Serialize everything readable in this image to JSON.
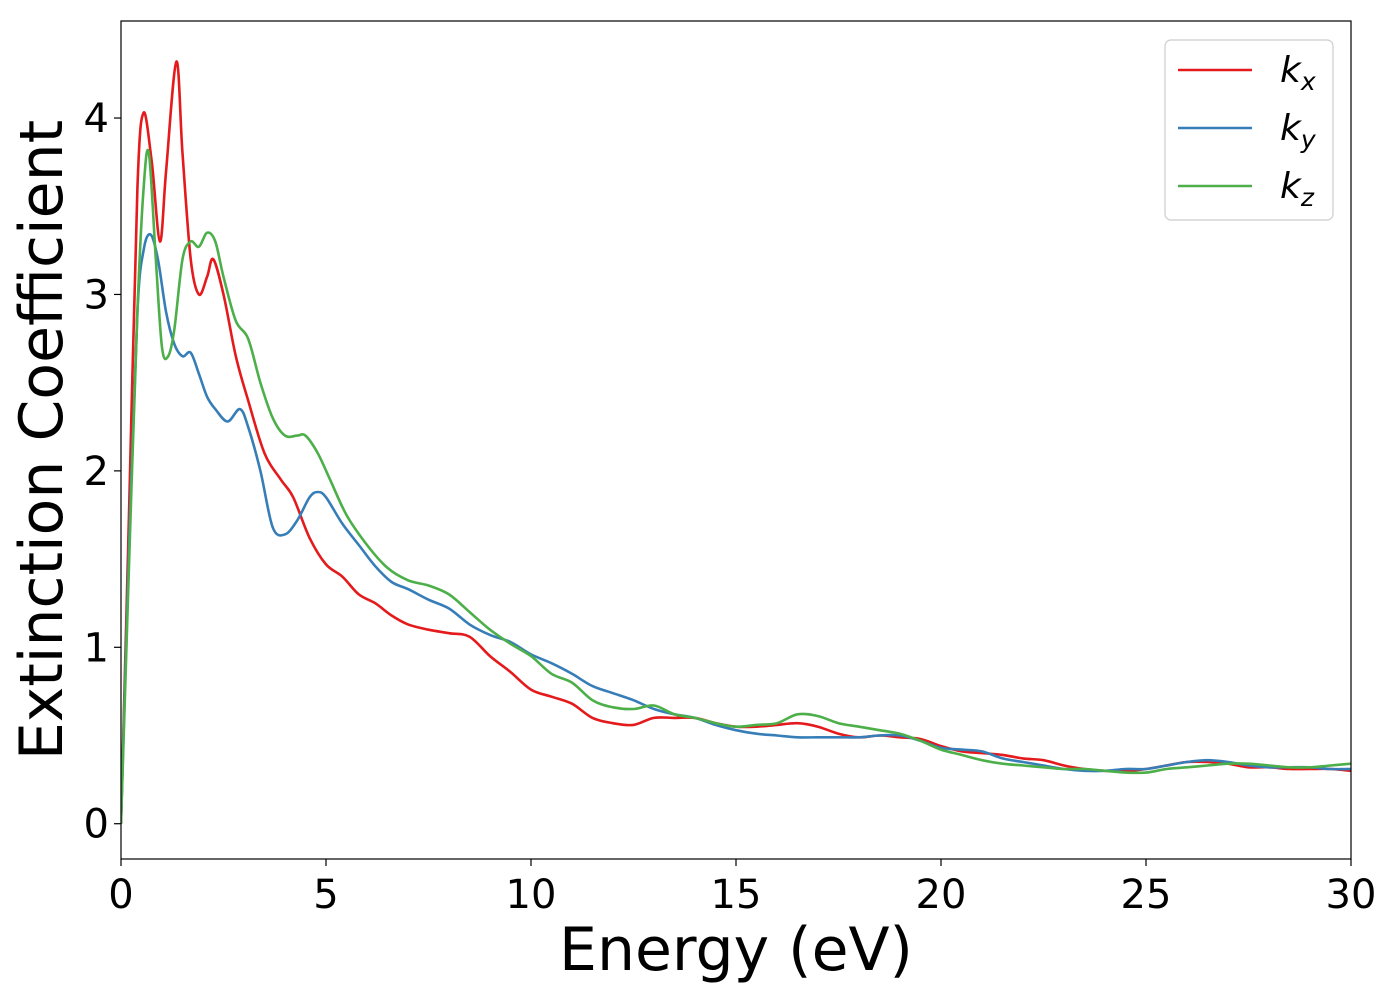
{
  "chart_data": {
    "type": "line",
    "title": "",
    "xlabel": "Energy (eV)",
    "ylabel": "Extinction Coefficient",
    "xlim": [
      0,
      30
    ],
    "ylim": [
      -0.2,
      4.55
    ],
    "xticks": [
      0,
      5,
      10,
      15,
      20,
      25,
      30
    ],
    "yticks": [
      0,
      1,
      2,
      3,
      4
    ],
    "xtick_labels": [
      "0",
      "5",
      "10",
      "15",
      "20",
      "25",
      "30"
    ],
    "ytick_labels": [
      "0",
      "1",
      "2",
      "3",
      "4"
    ],
    "grid": false,
    "legend_position": "top-right",
    "series": [
      {
        "name": "k_x",
        "legend_main": "k",
        "legend_sub": "x",
        "color": "#e41a1c",
        "x": [
          0,
          0.2,
          0.4,
          0.55,
          0.75,
          0.95,
          1.1,
          1.35,
          1.5,
          1.7,
          1.9,
          2.1,
          2.25,
          2.5,
          2.8,
          3.1,
          3.5,
          3.9,
          4.2,
          4.6,
          5.0,
          5.4,
          5.8,
          6.2,
          6.6,
          7.0,
          7.5,
          8.0,
          8.5,
          9.0,
          9.5,
          10.0,
          10.5,
          11.0,
          11.5,
          12.0,
          12.5,
          13.0,
          13.5,
          14.0,
          14.5,
          15.0,
          15.5,
          16.0,
          16.5,
          17.0,
          17.5,
          18.0,
          18.5,
          19.0,
          19.5,
          20.0,
          20.5,
          21.0,
          21.5,
          22.0,
          22.5,
          23.0,
          23.5,
          24.0,
          24.5,
          25.0,
          25.5,
          26.0,
          26.5,
          27.0,
          27.5,
          28.0,
          28.5,
          29.0,
          29.5,
          30.0
        ],
        "y": [
          0.0,
          1.8,
          3.6,
          4.03,
          3.75,
          3.3,
          3.7,
          4.32,
          3.8,
          3.2,
          3.0,
          3.1,
          3.2,
          3.0,
          2.65,
          2.4,
          2.1,
          1.95,
          1.85,
          1.62,
          1.47,
          1.4,
          1.3,
          1.25,
          1.18,
          1.13,
          1.1,
          1.08,
          1.06,
          0.95,
          0.86,
          0.76,
          0.72,
          0.68,
          0.6,
          0.57,
          0.56,
          0.6,
          0.6,
          0.6,
          0.57,
          0.55,
          0.55,
          0.56,
          0.57,
          0.55,
          0.51,
          0.49,
          0.5,
          0.49,
          0.48,
          0.44,
          0.41,
          0.4,
          0.39,
          0.37,
          0.36,
          0.33,
          0.31,
          0.3,
          0.3,
          0.31,
          0.33,
          0.35,
          0.35,
          0.34,
          0.32,
          0.32,
          0.31,
          0.31,
          0.31,
          0.3
        ]
      },
      {
        "name": "k_y",
        "legend_main": "k",
        "legend_sub": "y",
        "color": "#377eb8",
        "x": [
          0,
          0.2,
          0.4,
          0.55,
          0.72,
          0.9,
          1.1,
          1.3,
          1.5,
          1.7,
          1.9,
          2.1,
          2.3,
          2.6,
          2.9,
          3.1,
          3.4,
          3.7,
          4.0,
          4.3,
          4.6,
          4.8,
          5.0,
          5.4,
          5.8,
          6.2,
          6.6,
          7.0,
          7.5,
          8.0,
          8.5,
          9.0,
          9.5,
          10.0,
          10.5,
          11.0,
          11.5,
          12.0,
          12.5,
          13.0,
          13.5,
          14.0,
          14.5,
          15.0,
          15.5,
          16.0,
          16.5,
          17.0,
          17.5,
          18.0,
          18.5,
          19.0,
          19.5,
          20.0,
          20.5,
          21.0,
          21.5,
          22.0,
          22.5,
          23.0,
          23.5,
          24.0,
          24.5,
          25.0,
          25.5,
          26.0,
          26.5,
          27.0,
          27.5,
          28.0,
          28.5,
          29.0,
          29.5,
          30.0
        ],
        "y": [
          0.0,
          1.6,
          2.9,
          3.25,
          3.34,
          3.2,
          2.9,
          2.72,
          2.65,
          2.67,
          2.55,
          2.42,
          2.35,
          2.28,
          2.35,
          2.25,
          2.0,
          1.68,
          1.64,
          1.72,
          1.85,
          1.88,
          1.85,
          1.7,
          1.58,
          1.46,
          1.37,
          1.33,
          1.27,
          1.22,
          1.13,
          1.07,
          1.03,
          0.96,
          0.91,
          0.85,
          0.78,
          0.74,
          0.7,
          0.65,
          0.62,
          0.6,
          0.56,
          0.53,
          0.51,
          0.5,
          0.49,
          0.49,
          0.49,
          0.49,
          0.5,
          0.5,
          0.47,
          0.43,
          0.42,
          0.41,
          0.37,
          0.35,
          0.33,
          0.31,
          0.3,
          0.3,
          0.31,
          0.31,
          0.33,
          0.35,
          0.36,
          0.35,
          0.33,
          0.32,
          0.32,
          0.32,
          0.31,
          0.31
        ]
      },
      {
        "name": "k_z",
        "legend_main": "k",
        "legend_sub": "z",
        "color": "#4daf4a",
        "x": [
          0,
          0.2,
          0.4,
          0.55,
          0.68,
          0.85,
          1.0,
          1.15,
          1.3,
          1.5,
          1.7,
          1.9,
          2.1,
          2.3,
          2.5,
          2.8,
          3.1,
          3.4,
          3.7,
          4.0,
          4.3,
          4.5,
          4.8,
          5.1,
          5.5,
          6.0,
          6.5,
          7.0,
          7.5,
          8.0,
          8.5,
          9.0,
          9.5,
          10.0,
          10.5,
          11.0,
          11.5,
          12.0,
          12.5,
          13.0,
          13.5,
          14.0,
          14.5,
          15.0,
          15.5,
          16.0,
          16.5,
          17.0,
          17.5,
          18.0,
          18.5,
          19.0,
          19.5,
          20.0,
          20.5,
          21.0,
          21.5,
          22.0,
          22.5,
          23.0,
          23.5,
          24.0,
          24.5,
          25.0,
          25.5,
          26.0,
          26.5,
          27.0,
          27.5,
          28.0,
          28.5,
          29.0,
          29.5,
          30.0
        ],
        "y": [
          0.0,
          1.5,
          2.9,
          3.6,
          3.8,
          3.2,
          2.7,
          2.65,
          2.8,
          3.2,
          3.3,
          3.27,
          3.35,
          3.3,
          3.1,
          2.85,
          2.75,
          2.5,
          2.3,
          2.2,
          2.2,
          2.2,
          2.1,
          1.95,
          1.75,
          1.58,
          1.45,
          1.38,
          1.35,
          1.3,
          1.2,
          1.1,
          1.02,
          0.95,
          0.85,
          0.8,
          0.7,
          0.66,
          0.65,
          0.67,
          0.62,
          0.6,
          0.57,
          0.55,
          0.56,
          0.57,
          0.62,
          0.61,
          0.57,
          0.55,
          0.53,
          0.51,
          0.47,
          0.42,
          0.39,
          0.36,
          0.34,
          0.33,
          0.32,
          0.31,
          0.31,
          0.3,
          0.29,
          0.29,
          0.31,
          0.32,
          0.33,
          0.34,
          0.34,
          0.33,
          0.32,
          0.32,
          0.33,
          0.34
        ]
      }
    ]
  }
}
